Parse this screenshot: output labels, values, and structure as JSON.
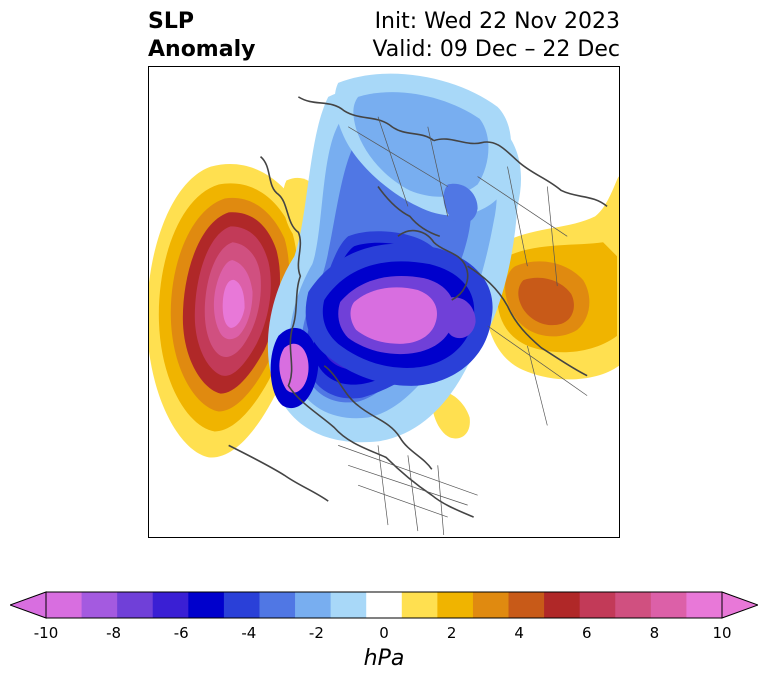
{
  "title": {
    "left_line1": "SLP",
    "left_line2": "Anomaly",
    "right_line1": "Init: Wed 22 Nov 2023",
    "right_line2": "Valid: 09 Dec – 22 Dec"
  },
  "colorbar": {
    "label": "hPa",
    "ticks": [
      "-10",
      "-8",
      "-6",
      "-4",
      "-2",
      "0",
      "2",
      "4",
      "6",
      "8",
      "10"
    ],
    "levels": [
      -10,
      -9,
      -8,
      -7,
      -6,
      -5,
      -4,
      -3,
      -2,
      -1,
      1,
      2,
      3,
      4,
      5,
      6,
      7,
      8,
      9,
      10
    ],
    "colors": [
      "#d86ee0",
      "#a45ae0",
      "#7040d8",
      "#3a1fd4",
      "#0000cc",
      "#2a40d8",
      "#5077e4",
      "#78aef0",
      "#a8d8f8",
      "#ffffff",
      "#ffe050",
      "#f0b400",
      "#e08a10",
      "#c85a18",
      "#b02828",
      "#c23a58",
      "#d05080",
      "#dc60a8",
      "#e878d8"
    ],
    "extend": "both"
  },
  "colors": {
    "strong_negative": "#d86ee0",
    "negative": "#0000cc",
    "weak_negative": "#a8d8f8",
    "weak_positive": "#ffe050",
    "positive": "#e08a10",
    "strong_positive": "#b02828",
    "coastline": "#444444"
  },
  "map": {
    "projection": "north-polar-stereographic",
    "region": "Northern Hemisphere"
  }
}
